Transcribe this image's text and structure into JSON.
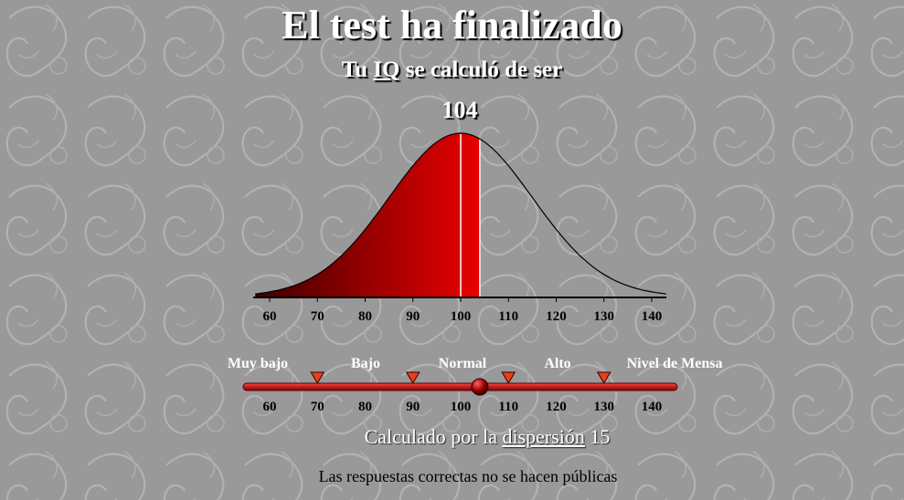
{
  "page": {
    "title": "El test ha finalizado",
    "subtitle_prefix": "Tu",
    "subtitle_link": "IQ",
    "subtitle_suffix": "se calculó de ser",
    "score": "104",
    "dispersion_prefix": "Calculado por la",
    "dispersion_link": "dispersión",
    "dispersion_value": "15",
    "note": "Las respuestas correctas no se hacen públicas"
  },
  "colors": {
    "background": "#999999",
    "curve_fill_dark": "#4a0000",
    "curve_fill_bright": "#e80000",
    "slider_track": "#c81a1a",
    "marker": "#e8401a"
  },
  "chart_data": {
    "type": "area",
    "score": 104,
    "mean": 100,
    "sd": 15,
    "xlim": [
      57,
      143
    ],
    "x_ticks": [
      60,
      70,
      80,
      90,
      100,
      110,
      120,
      130,
      140
    ]
  },
  "scale": {
    "categories": [
      "Muy bajo",
      "Bajo",
      "Normal",
      "Alto",
      "Nivel de Mensa"
    ],
    "boundaries": [
      70,
      90,
      110,
      130
    ],
    "ticks": [
      "60",
      "70",
      "80",
      "90",
      "100",
      "110",
      "120",
      "130",
      "140"
    ],
    "value": 104
  }
}
